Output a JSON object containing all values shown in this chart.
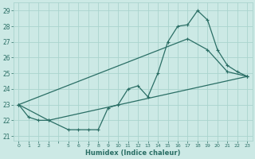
{
  "xlabel": "Humidex (Indice chaleur)",
  "bg_color": "#cce9e5",
  "line_color": "#2a6e65",
  "grid_color": "#aad4ce",
  "xlim": [
    -0.5,
    23.5
  ],
  "ylim": [
    20.7,
    29.5
  ],
  "yticks": [
    21,
    22,
    23,
    24,
    25,
    26,
    27,
    28,
    29
  ],
  "xtick_labels": [
    "0",
    "1",
    "2",
    "3",
    "",
    "5",
    "6",
    "7",
    "8",
    "9",
    "10",
    "11",
    "12",
    "13",
    "14",
    "15",
    "16",
    "17",
    "18",
    "19",
    "20",
    "21",
    "22",
    "23"
  ],
  "line1_x": [
    0,
    1,
    2,
    3,
    5,
    6,
    7,
    8,
    9,
    10,
    11,
    12,
    13,
    14,
    15,
    16,
    17,
    18,
    19,
    20,
    21,
    22,
    23
  ],
  "line1_y": [
    23.0,
    22.2,
    22.0,
    22.0,
    21.4,
    21.4,
    21.4,
    21.4,
    22.8,
    23.0,
    24.0,
    24.2,
    23.5,
    25.0,
    27.0,
    28.0,
    28.1,
    29.0,
    28.4,
    26.5,
    25.5,
    25.1,
    24.8
  ],
  "line2_x": [
    0,
    3,
    23
  ],
  "line2_y": [
    23.0,
    22.0,
    24.8
  ],
  "line3_x": [
    0,
    17,
    19,
    21,
    23
  ],
  "line3_y": [
    23.0,
    27.2,
    26.5,
    25.1,
    24.8
  ]
}
